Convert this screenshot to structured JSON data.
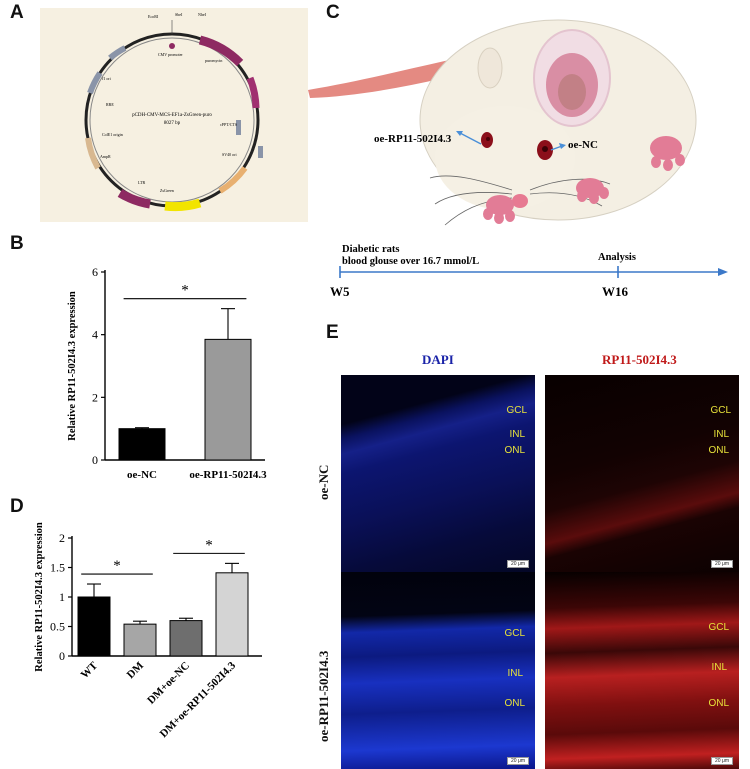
{
  "panels": {
    "A": "A",
    "B": "B",
    "C": "C",
    "D": "D",
    "E": "E"
  },
  "plasmid": {
    "name": "pCDH-CMV-MCS-EF1a-ZsGreen-puro",
    "size": "8027 bp",
    "labels": [
      "EcoRI",
      "SbeI",
      "NheI",
      "CMV promoter",
      "puromycin",
      "ZsGreen",
      "SV40 ori",
      "AmpR",
      "f1 ori",
      "ColE1 origin",
      "cPPT/CTS",
      "RRE",
      "LTR"
    ]
  },
  "schematic": {
    "left_label": "oe-RP11-502I4.3",
    "right_label": "oe-NC",
    "timeline_text1": "Diabetic rats",
    "timeline_text2": "blood glouse over 16.7 mmol/L",
    "analysis": "Analysis",
    "start": "W5",
    "end": "W16"
  },
  "chart_data": [
    {
      "panel": "B",
      "type": "bar",
      "categories": [
        "oe-NC",
        "oe-RP11-502I4.3"
      ],
      "values": [
        1.0,
        3.85
      ],
      "errors": [
        0.03,
        0.98
      ],
      "colors": [
        "#000000",
        "#9a9a9a"
      ],
      "ylabel": "Relative RP11-502I4.3 expression",
      "ylim": [
        0,
        6
      ],
      "yticks": [
        0,
        2,
        4,
        6
      ],
      "significance": [
        {
          "from": 0,
          "to": 1,
          "label": "*"
        }
      ]
    },
    {
      "panel": "D",
      "type": "bar",
      "categories": [
        "WT",
        "DM",
        "DM+oe-NC",
        "DM+oe-RP11-502I4.3"
      ],
      "values": [
        1.0,
        0.54,
        0.6,
        1.41
      ],
      "errors": [
        0.22,
        0.05,
        0.04,
        0.16
      ],
      "colors": [
        "#000000",
        "#a6a6a6",
        "#6e6e6e",
        "#d4d4d4"
      ],
      "ylabel": "Relative RP11-502I4.3 expression",
      "ylim": [
        0,
        2.0
      ],
      "yticks": [
        0,
        0.5,
        1.0,
        1.5,
        2.0
      ],
      "significance": [
        {
          "from": 0,
          "to": 1,
          "label": "*"
        },
        {
          "from": 2,
          "to": 3,
          "label": "*"
        }
      ]
    }
  ],
  "micro": {
    "col1": "DAPI",
    "col2": "RP11-502I4.3",
    "row1": "oe-NC",
    "row2": "oe-RP11-502I4.3",
    "layers": [
      "GCL",
      "INL",
      "ONL"
    ],
    "scale": "20 μm",
    "colors": {
      "dapi": "#1a2fcc",
      "rp": "#d42020"
    }
  }
}
